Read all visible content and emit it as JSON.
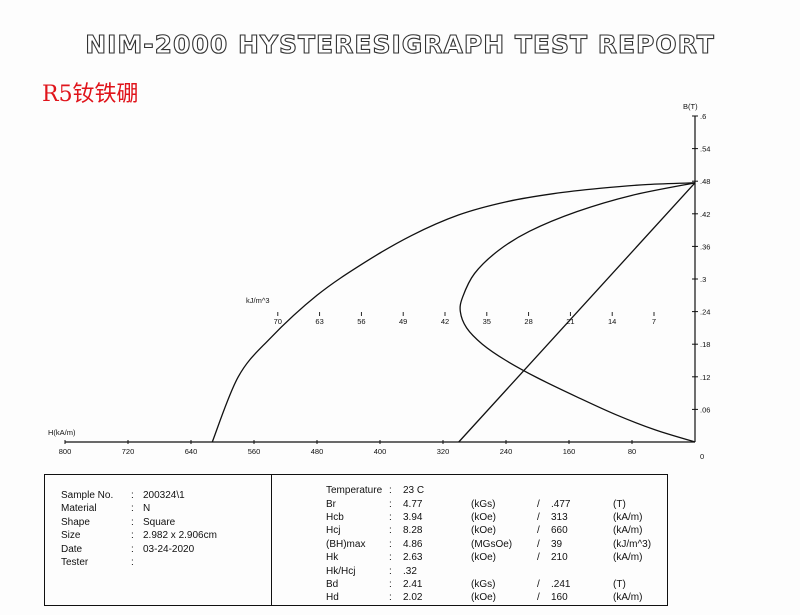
{
  "header": {
    "title": "NIM-2000 HYSTERESIGRAPH TEST REPORT",
    "material_label": "R5钕铁硼"
  },
  "chart_data": {
    "type": "line",
    "x_axis": {
      "label": "H(kA/m)",
      "range": [
        800,
        0
      ],
      "ticks": [
        "800",
        "720",
        "640",
        "560",
        "480",
        "400",
        "320",
        "240",
        "160",
        "80"
      ],
      "tick_values": [
        800,
        720,
        640,
        560,
        480,
        400,
        320,
        240,
        160,
        80
      ]
    },
    "y_axis": {
      "label": "B(T)",
      "range": [
        0,
        0.6
      ],
      "ticks": [
        ".6",
        ".54",
        ".48",
        ".42",
        ".36",
        ".3",
        ".24",
        ".18",
        ".12",
        ".06"
      ],
      "tick_values": [
        0.6,
        0.54,
        0.48,
        0.42,
        0.36,
        0.3,
        0.24,
        0.18,
        0.12,
        0.06
      ],
      "origin_label": "0"
    },
    "energy_scale": {
      "label": "kJ/m^3",
      "ticks": [
        "70",
        "63",
        "56",
        "49",
        "42",
        "35",
        "28",
        "21",
        "14",
        "7"
      ],
      "tick_values": [
        70,
        63,
        56,
        49,
        42,
        35,
        28,
        21,
        14,
        7
      ]
    },
    "series": [
      {
        "points": [
          [
            0,
            0.477
          ],
          [
            60,
            0.474
          ],
          [
            120,
            0.467
          ],
          [
            180,
            0.457
          ],
          [
            240,
            0.442
          ],
          [
            300,
            0.418
          ],
          [
            360,
            0.38
          ],
          [
            420,
            0.33
          ],
          [
            480,
            0.27
          ],
          [
            540,
            0.19
          ],
          [
            580,
            0.12
          ],
          [
            613,
            0
          ]
        ]
      },
      {
        "points": [
          [
            0,
            0.477
          ],
          [
            300,
            0
          ]
        ]
      },
      {
        "points": [
          [
            0,
            0.477
          ],
          [
            80,
            0.454
          ],
          [
            150,
            0.424
          ],
          [
            210,
            0.388
          ],
          [
            250,
            0.352
          ],
          [
            280,
            0.31
          ],
          [
            295,
            0.267
          ],
          [
            298,
            0.24
          ],
          [
            290,
            0.21
          ],
          [
            270,
            0.18
          ],
          [
            240,
            0.15
          ],
          [
            200,
            0.118
          ],
          [
            150,
            0.083
          ],
          [
            100,
            0.05
          ],
          [
            50,
            0.022
          ],
          [
            0,
            0
          ]
        ]
      }
    ]
  },
  "sample": {
    "rows": [
      {
        "label": "Sample No.",
        "value": "200324\\1"
      },
      {
        "label": "Material",
        "value": "N"
      },
      {
        "label": "Shape",
        "value": "Square"
      },
      {
        "label": "Size",
        "value": "2.982 x  2.906cm"
      },
      {
        "label": "Date",
        "value": "03-24-2020"
      },
      {
        "label": "Tester",
        "value": ""
      }
    ]
  },
  "measurements": {
    "rows": [
      {
        "label": "Temperature",
        "v1": "23 C",
        "u1": "",
        "slash": "",
        "v2": "",
        "u2": ""
      },
      {
        "label": "Br",
        "v1": "4.77",
        "u1": "(kGs)",
        "slash": "/",
        "v2": ".477",
        "u2": "(T)"
      },
      {
        "label": "Hcb",
        "v1": "3.94",
        "u1": "(kOe)",
        "slash": "/",
        "v2": "313",
        "u2": "(kA/m)"
      },
      {
        "label": "Hcj",
        "v1": "8.28",
        "u1": "(kOe)",
        "slash": "/",
        "v2": "660",
        "u2": "(kA/m)"
      },
      {
        "label": "(BH)max",
        "v1": "4.86",
        "u1": "(MGsOe)",
        "slash": "/",
        "v2": "39",
        "u2": "(kJ/m^3)"
      },
      {
        "label": "Hk",
        "v1": "2.63",
        "u1": "(kOe)",
        "slash": "/",
        "v2": "210",
        "u2": "(kA/m)"
      },
      {
        "label": "Hk/Hcj",
        "v1": ".32",
        "u1": "",
        "slash": "",
        "v2": "",
        "u2": ""
      },
      {
        "label": "Bd",
        "v1": "2.41",
        "u1": "(kGs)",
        "slash": "/",
        "v2": ".241",
        "u2": "(T)"
      },
      {
        "label": "Hd",
        "v1": "2.02",
        "u1": "(kOe)",
        "slash": "/",
        "v2": "160",
        "u2": "(kA/m)"
      }
    ]
  }
}
